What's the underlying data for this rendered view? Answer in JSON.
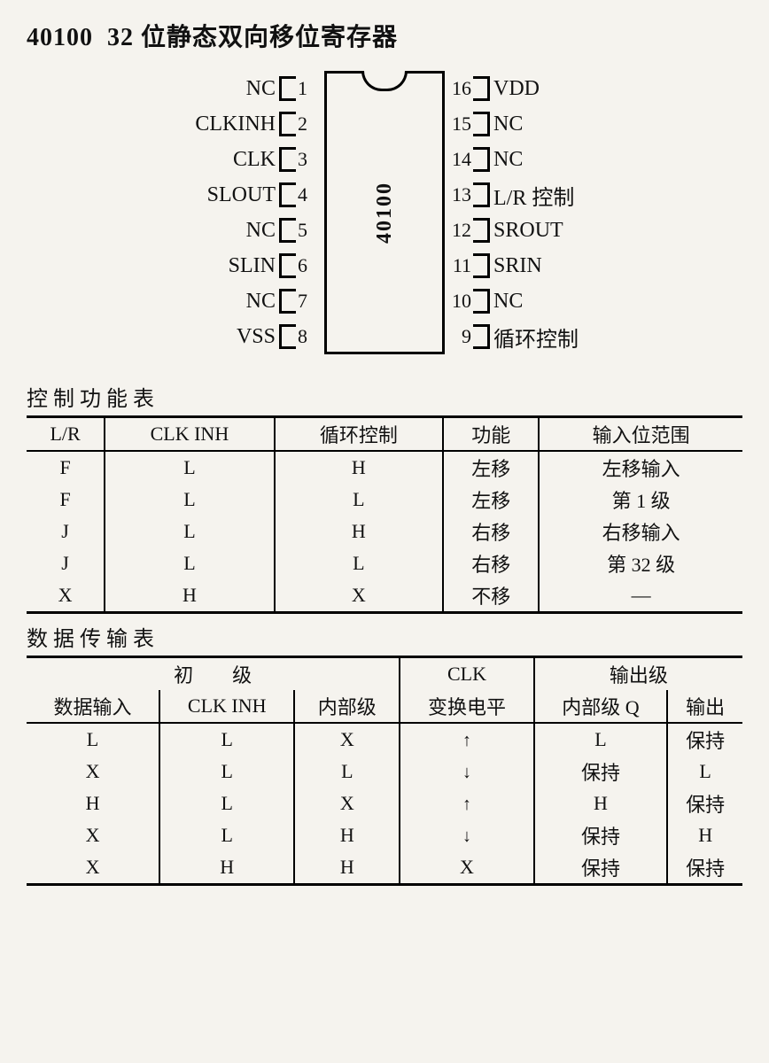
{
  "title_part": "40100",
  "title_text": "32 位静态双向移位寄存器",
  "dip": {
    "part": "40100",
    "left_pins": [
      {
        "n": "1",
        "label": "NC"
      },
      {
        "n": "2",
        "label": "CLKINH"
      },
      {
        "n": "3",
        "label": "CLK"
      },
      {
        "n": "4",
        "label": "SLOUT"
      },
      {
        "n": "5",
        "label": "NC"
      },
      {
        "n": "6",
        "label": "SLIN"
      },
      {
        "n": "7",
        "label": "NC"
      },
      {
        "n": "8",
        "label": "VSS"
      }
    ],
    "right_pins": [
      {
        "n": "16",
        "label": "VDD"
      },
      {
        "n": "15",
        "label": "NC"
      },
      {
        "n": "14",
        "label": "NC"
      },
      {
        "n": "13",
        "label": "L/R 控制"
      },
      {
        "n": "12",
        "label": "SROUT"
      },
      {
        "n": "11",
        "label": "SRIN"
      },
      {
        "n": "10",
        "label": "NC"
      },
      {
        "n": "9",
        "label": "循环控制"
      }
    ]
  },
  "table1": {
    "title": "控制功能表",
    "headers": [
      "L/R",
      "CLK INH",
      "循环控制",
      "功能",
      "输入位范围"
    ],
    "rows": [
      [
        "F",
        "L",
        "H",
        "左移",
        "左移输入"
      ],
      [
        "F",
        "L",
        "L",
        "左移",
        "第 1 级"
      ],
      [
        "J",
        "L",
        "H",
        "右移",
        "右移输入"
      ],
      [
        "J",
        "L",
        "L",
        "右移",
        "第 32 级"
      ],
      [
        "X",
        "H",
        "X",
        "不移",
        "—"
      ]
    ]
  },
  "table2": {
    "title": "数据传输表",
    "head1": {
      "g1": "初　　级",
      "g2": "CLK",
      "g3": "输出级"
    },
    "head2": [
      "数据输入",
      "CLK INH",
      "内部级",
      "变换电平",
      "内部级 Q",
      "输出"
    ],
    "rows": [
      [
        "L",
        "L",
        "X",
        "↑",
        "L",
        "保持"
      ],
      [
        "X",
        "L",
        "L",
        "↓",
        "保持",
        "L"
      ],
      [
        "H",
        "L",
        "X",
        "↑",
        "H",
        "保持"
      ],
      [
        "X",
        "L",
        "H",
        "↓",
        "保持",
        "H"
      ],
      [
        "X",
        "H",
        "H",
        "X",
        "保持",
        "保持"
      ]
    ]
  },
  "colors": {
    "bg": "#f5f3ee",
    "fg": "#111111",
    "border": "#000000"
  }
}
